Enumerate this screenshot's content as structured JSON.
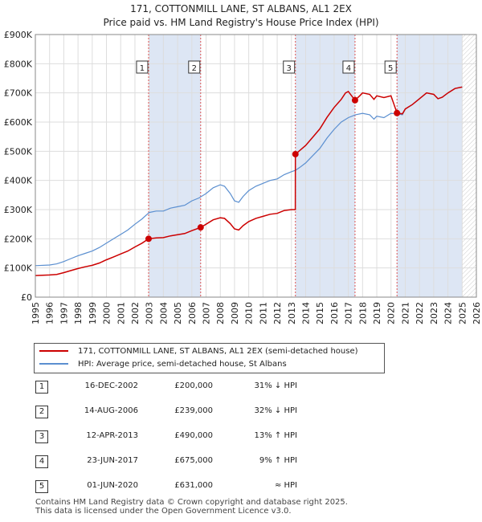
{
  "title_line1": "171, COTTONMILL LANE, ST ALBANS, AL1 2EX",
  "title_line2": "Price paid vs. HM Land Registry's House Price Index (HPI)",
  "colors": {
    "price_line": "#cc0000",
    "hpi_line": "#5b8fd0",
    "shade": "#dde6f4",
    "hatch": "#cccccc",
    "marker_line": "#dd5555"
  },
  "chart_data": {
    "type": "line",
    "xlim": [
      1995,
      2026
    ],
    "ylim": [
      0,
      900000
    ],
    "y_ticks": [
      {
        "value": 0,
        "label": "£0"
      },
      {
        "value": 100000,
        "label": "£100K"
      },
      {
        "value": 200000,
        "label": "£200K"
      },
      {
        "value": 300000,
        "label": "£300K"
      },
      {
        "value": 400000,
        "label": "£400K"
      },
      {
        "value": 500000,
        "label": "£500K"
      },
      {
        "value": 600000,
        "label": "£600K"
      },
      {
        "value": 700000,
        "label": "£700K"
      },
      {
        "value": 800000,
        "label": "£800K"
      },
      {
        "value": 900000,
        "label": "£900K"
      }
    ],
    "x_ticks": [
      1995,
      1996,
      1997,
      1998,
      1999,
      2000,
      2001,
      2002,
      2003,
      2004,
      2005,
      2006,
      2007,
      2008,
      2009,
      2010,
      2011,
      2012,
      2013,
      2014,
      2015,
      2016,
      2017,
      2018,
      2019,
      2020,
      2021,
      2022,
      2023,
      2024,
      2025,
      2026
    ],
    "forecast_start": 2025.0,
    "series": [
      {
        "name": "hpi",
        "points": [
          [
            1995.0,
            108000
          ],
          [
            1996.0,
            110000
          ],
          [
            1996.5,
            114000
          ],
          [
            1997.0,
            122000
          ],
          [
            1997.5,
            132000
          ],
          [
            1998.0,
            142000
          ],
          [
            1998.5,
            150000
          ],
          [
            1999.0,
            158000
          ],
          [
            1999.5,
            170000
          ],
          [
            2000.0,
            185000
          ],
          [
            2000.5,
            200000
          ],
          [
            2001.0,
            215000
          ],
          [
            2001.5,
            230000
          ],
          [
            2002.0,
            250000
          ],
          [
            2002.5,
            268000
          ],
          [
            2003.0,
            290000
          ],
          [
            2003.5,
            295000
          ],
          [
            2004.0,
            295000
          ],
          [
            2004.5,
            305000
          ],
          [
            2005.0,
            310000
          ],
          [
            2005.5,
            315000
          ],
          [
            2006.0,
            330000
          ],
          [
            2006.5,
            340000
          ],
          [
            2007.0,
            355000
          ],
          [
            2007.5,
            375000
          ],
          [
            2008.0,
            385000
          ],
          [
            2008.3,
            380000
          ],
          [
            2008.7,
            355000
          ],
          [
            2009.0,
            330000
          ],
          [
            2009.3,
            325000
          ],
          [
            2009.6,
            345000
          ],
          [
            2010.0,
            365000
          ],
          [
            2010.5,
            380000
          ],
          [
            2011.0,
            390000
          ],
          [
            2011.5,
            400000
          ],
          [
            2012.0,
            405000
          ],
          [
            2012.5,
            420000
          ],
          [
            2013.0,
            430000
          ],
          [
            2013.3,
            435000
          ],
          [
            2013.6,
            445000
          ],
          [
            2014.0,
            460000
          ],
          [
            2014.5,
            485000
          ],
          [
            2015.0,
            510000
          ],
          [
            2015.5,
            545000
          ],
          [
            2016.0,
            575000
          ],
          [
            2016.5,
            600000
          ],
          [
            2017.0,
            615000
          ],
          [
            2017.5,
            625000
          ],
          [
            2018.0,
            630000
          ],
          [
            2018.5,
            625000
          ],
          [
            2018.8,
            610000
          ],
          [
            2019.0,
            620000
          ],
          [
            2019.5,
            615000
          ],
          [
            2020.0,
            630000
          ],
          [
            2020.5,
            628000
          ],
          [
            2020.8,
            625000
          ],
          [
            2021.0,
            645000
          ],
          [
            2021.5,
            660000
          ],
          [
            2022.0,
            680000
          ],
          [
            2022.5,
            700000
          ],
          [
            2023.0,
            695000
          ],
          [
            2023.3,
            680000
          ],
          [
            2023.6,
            685000
          ],
          [
            2024.0,
            700000
          ],
          [
            2024.5,
            715000
          ],
          [
            2025.0,
            720000
          ]
        ]
      },
      {
        "name": "price_paid",
        "points": [
          [
            1995.0,
            74000
          ],
          [
            1996.0,
            76000
          ],
          [
            1996.5,
            78000
          ],
          [
            1997.0,
            84000
          ],
          [
            1997.5,
            91000
          ],
          [
            1998.0,
            98000
          ],
          [
            1998.5,
            104000
          ],
          [
            1999.0,
            109000
          ],
          [
            1999.5,
            117000
          ],
          [
            2000.0,
            128000
          ],
          [
            2000.5,
            138000
          ],
          [
            2001.0,
            148000
          ],
          [
            2001.5,
            158000
          ],
          [
            2002.0,
            172000
          ],
          [
            2002.5,
            185000
          ],
          [
            2002.96,
            200000
          ],
          [
            2003.5,
            203000
          ],
          [
            2004.0,
            204000
          ],
          [
            2004.5,
            210000
          ],
          [
            2005.0,
            214000
          ],
          [
            2005.5,
            218000
          ],
          [
            2006.0,
            228000
          ],
          [
            2006.62,
            239000
          ],
          [
            2007.0,
            250000
          ],
          [
            2007.5,
            265000
          ],
          [
            2008.0,
            272000
          ],
          [
            2008.3,
            270000
          ],
          [
            2008.7,
            252000
          ],
          [
            2009.0,
            234000
          ],
          [
            2009.3,
            230000
          ],
          [
            2009.6,
            245000
          ],
          [
            2010.0,
            259000
          ],
          [
            2010.5,
            270000
          ],
          [
            2011.0,
            277000
          ],
          [
            2011.5,
            284000
          ],
          [
            2012.0,
            287000
          ],
          [
            2012.5,
            297000
          ],
          [
            2013.0,
            300000
          ],
          [
            2013.27,
            300000
          ],
          [
            2013.28,
            490000
          ],
          [
            2013.6,
            503000
          ],
          [
            2014.0,
            520000
          ],
          [
            2014.5,
            548000
          ],
          [
            2015.0,
            577000
          ],
          [
            2015.5,
            616000
          ],
          [
            2016.0,
            650000
          ],
          [
            2016.5,
            678000
          ],
          [
            2016.8,
            700000
          ],
          [
            2017.0,
            705000
          ],
          [
            2017.47,
            675000
          ],
          [
            2017.8,
            690000
          ],
          [
            2018.0,
            700000
          ],
          [
            2018.5,
            695000
          ],
          [
            2018.8,
            678000
          ],
          [
            2019.0,
            690000
          ],
          [
            2019.5,
            684000
          ],
          [
            2020.0,
            690000
          ],
          [
            2020.42,
            631000
          ],
          [
            2020.8,
            628000
          ],
          [
            2021.0,
            645000
          ],
          [
            2021.5,
            660000
          ],
          [
            2022.0,
            680000
          ],
          [
            2022.5,
            700000
          ],
          [
            2023.0,
            695000
          ],
          [
            2023.3,
            680000
          ],
          [
            2023.6,
            685000
          ],
          [
            2024.0,
            700000
          ],
          [
            2024.5,
            715000
          ],
          [
            2025.0,
            720000
          ]
        ]
      }
    ],
    "sales": [
      {
        "id": "1",
        "x": 2002.96,
        "y": 200000
      },
      {
        "id": "2",
        "x": 2006.62,
        "y": 239000
      },
      {
        "id": "3",
        "x": 2013.28,
        "y": 490000
      },
      {
        "id": "4",
        "x": 2017.47,
        "y": 675000
      },
      {
        "id": "5",
        "x": 2020.42,
        "y": 631000
      }
    ]
  },
  "legend": {
    "price_label": "171, COTTONMILL LANE, ST ALBANS, AL1 2EX (semi-detached house)",
    "hpi_label": "HPI: Average price, semi-detached house, St Albans"
  },
  "sales_table": [
    {
      "num": "1",
      "date": "16-DEC-2002",
      "price": "£200,000",
      "hpi": "31% ↓ HPI"
    },
    {
      "num": "2",
      "date": "14-AUG-2006",
      "price": "£239,000",
      "hpi": "32% ↓ HPI"
    },
    {
      "num": "3",
      "date": "12-APR-2013",
      "price": "£490,000",
      "hpi": "13% ↑ HPI"
    },
    {
      "num": "4",
      "date": "23-JUN-2017",
      "price": "£675,000",
      "hpi": "9% ↑ HPI"
    },
    {
      "num": "5",
      "date": "01-JUN-2020",
      "price": "£631,000",
      "hpi": "≈ HPI"
    }
  ],
  "footer": {
    "line1": "Contains HM Land Registry data © Crown copyright and database right 2025.",
    "line2": "This data is licensed under the Open Government Licence v3.0."
  }
}
